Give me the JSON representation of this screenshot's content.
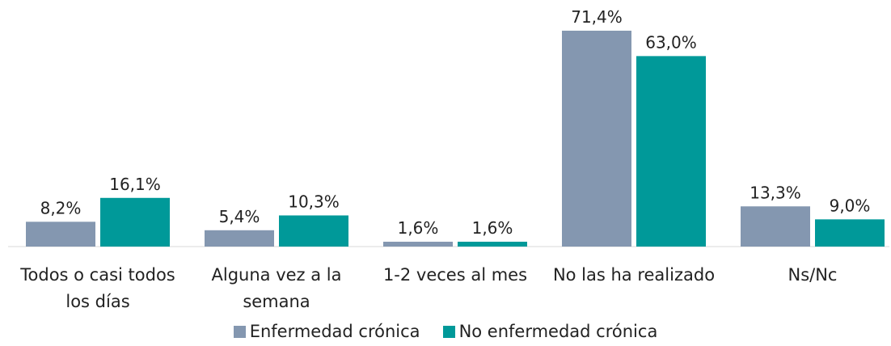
{
  "chart_data": {
    "type": "bar",
    "categories": [
      "Todos o casi todos los días",
      "Alguna vez a la semana",
      "1-2 veces al mes",
      "No las ha realizado",
      "Ns/Nc"
    ],
    "series": [
      {
        "name": "Enfermedad crónica",
        "color": "#8497b0",
        "values": [
          8.2,
          5.4,
          1.6,
          71.4,
          13.3
        ],
        "value_labels": [
          "8,2%",
          "5,4%",
          "1,6%",
          "71,4%",
          "13,3%"
        ]
      },
      {
        "name": "No enfermedad crónica",
        "color": "#009999",
        "values": [
          16.1,
          10.3,
          1.6,
          63.0,
          9.0
        ],
        "value_labels": [
          "16,1%",
          "10,3%",
          "1,6%",
          "63,0%",
          "9,0%"
        ]
      }
    ]
  }
}
